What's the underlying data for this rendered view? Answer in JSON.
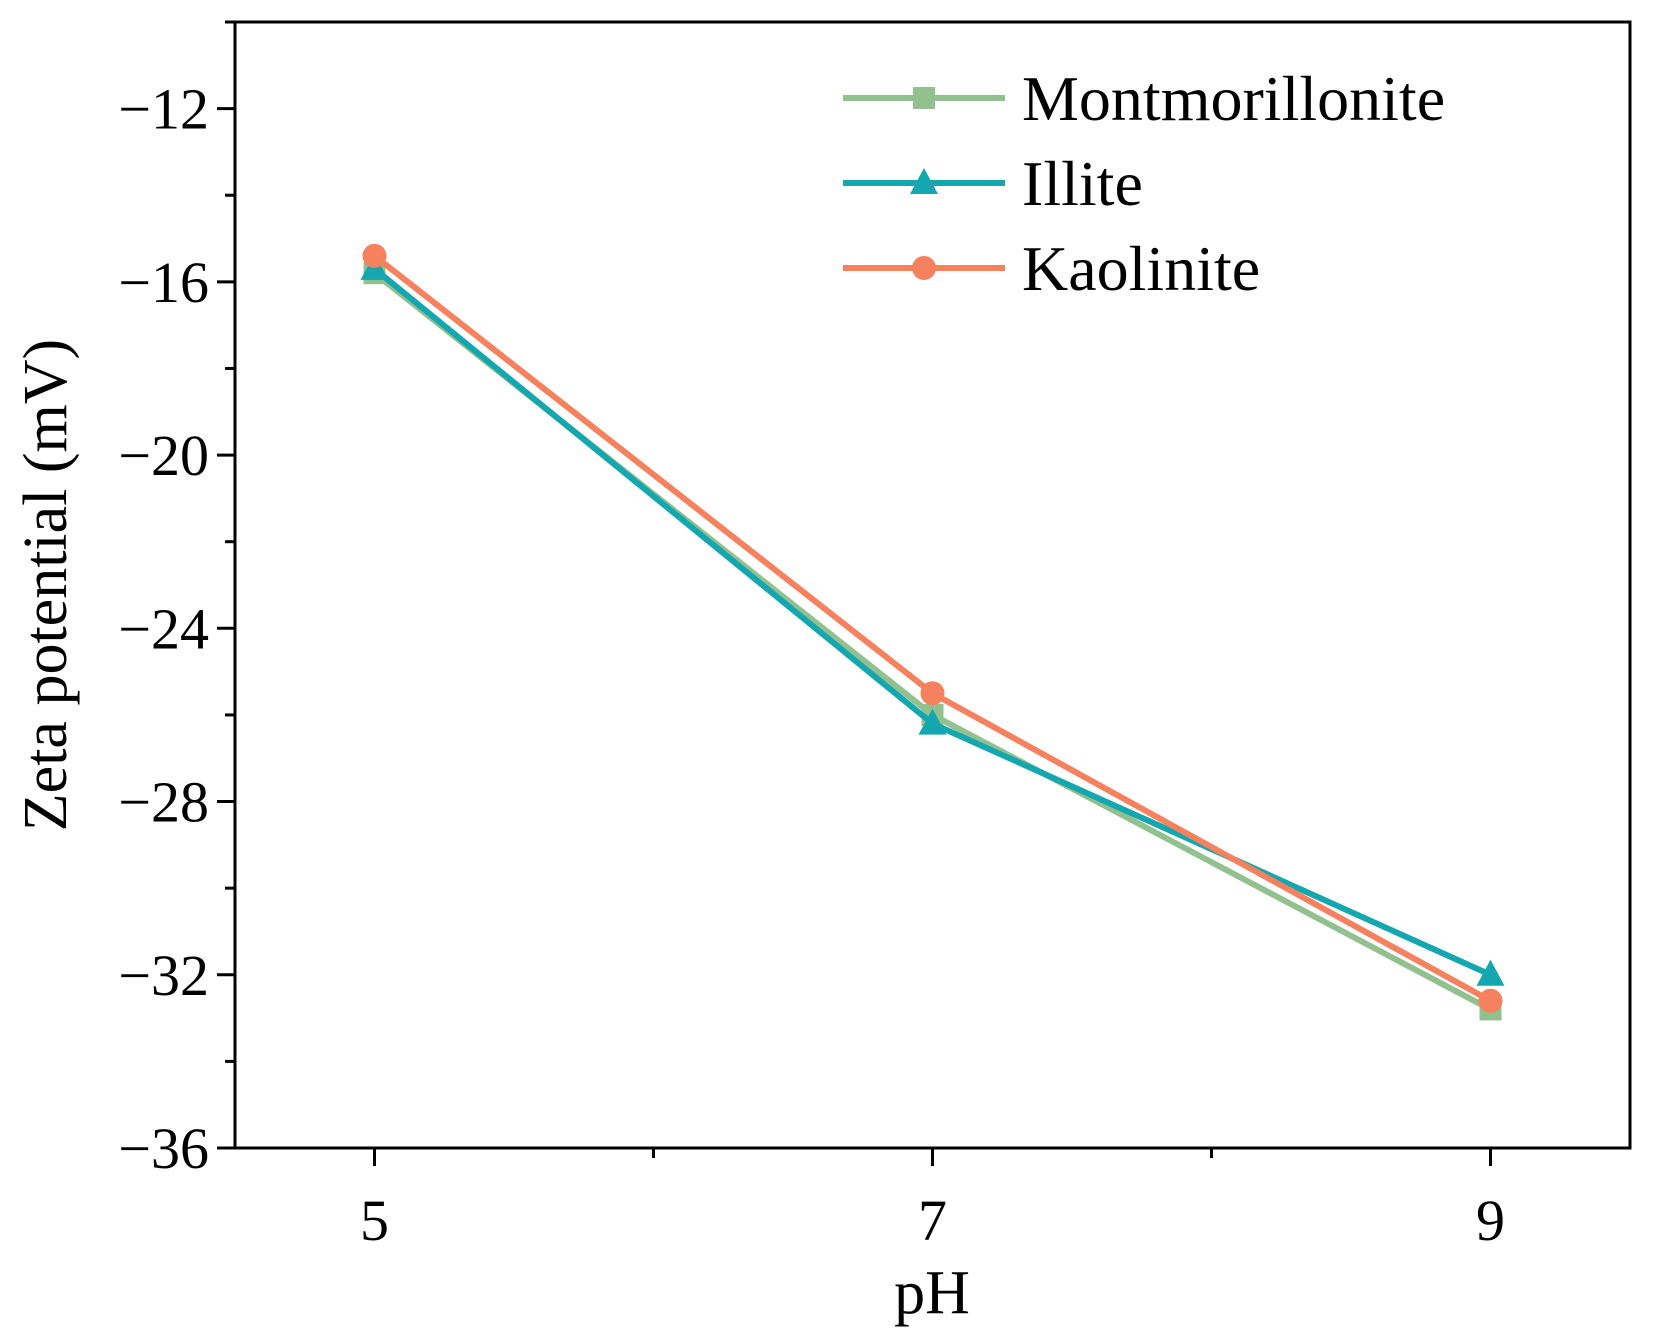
{
  "chart_data": {
    "type": "line",
    "title": "",
    "xlabel": "pH",
    "ylabel": "Zeta potential (mV)",
    "xlim": [
      4.5,
      9.5
    ],
    "ylim": [
      -36,
      -10
    ],
    "x_ticks": [
      5,
      7,
      9
    ],
    "x_tick_labels": [
      "5",
      "7",
      "9"
    ],
    "x_minor_ticks": [
      6,
      8
    ],
    "y_ticks": [
      -12,
      -16,
      -20,
      -24,
      -28,
      -32,
      -36
    ],
    "y_tick_labels": [
      "−12",
      "−16",
      "−20",
      "−24",
      "−28",
      "−32",
      "−36"
    ],
    "y_minor_ticks": [
      -10,
      -14,
      -18,
      -22,
      -26,
      -30,
      -34
    ],
    "grid": false,
    "legend_position": "top-right",
    "series": [
      {
        "name": "Montmorillonite",
        "marker": "square",
        "color": "#93c08f",
        "x": [
          5,
          7,
          9
        ],
        "values": [
          -15.8,
          -26.0,
          -32.8
        ]
      },
      {
        "name": "Illite",
        "marker": "triangle",
        "color": "#14a7b0",
        "x": [
          5,
          7,
          9
        ],
        "values": [
          -15.7,
          -26.2,
          -32.0
        ]
      },
      {
        "name": "Kaolinite",
        "marker": "circle",
        "color": "#f5815e",
        "x": [
          5,
          7,
          9
        ],
        "values": [
          -15.4,
          -25.5,
          -32.6
        ]
      }
    ]
  }
}
